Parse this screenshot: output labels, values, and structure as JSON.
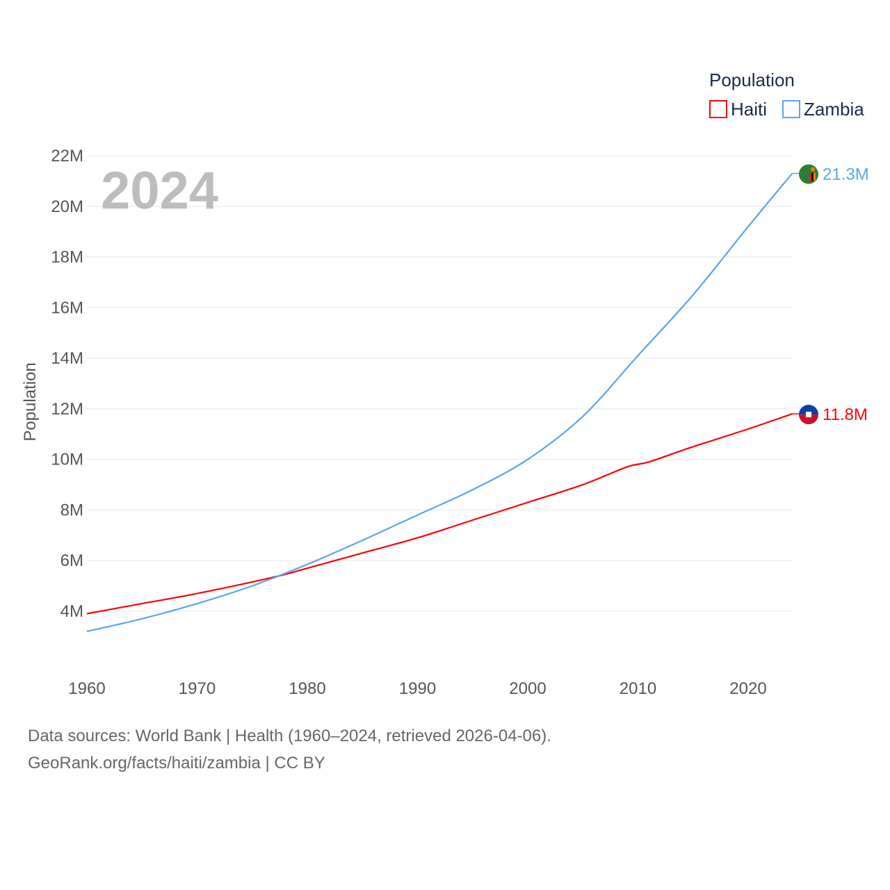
{
  "chart_data": {
    "type": "line",
    "year_label": "2024",
    "ylabel": "Population",
    "xlabel": "",
    "legend_title": "Population",
    "legend_position": "top-right",
    "ylim": [
      0,
      22000000
    ],
    "xlim": [
      1960,
      2024
    ],
    "grid": true,
    "y_ticks": [
      4000000,
      6000000,
      8000000,
      10000000,
      12000000,
      14000000,
      16000000,
      18000000,
      20000000,
      22000000
    ],
    "y_tick_labels": [
      "4M",
      "6M",
      "8M",
      "10M",
      "12M",
      "14M",
      "16M",
      "18M",
      "20M",
      "22M"
    ],
    "x_ticks": [
      1960,
      1970,
      1980,
      1990,
      2000,
      2010,
      2020
    ],
    "x_tick_labels": [
      "1960",
      "1970",
      "1980",
      "1990",
      "2000",
      "2010",
      "2020"
    ],
    "series": [
      {
        "name": "Haiti",
        "color": "#ff0000",
        "end_label": "11.8M",
        "flag": "haiti-flag",
        "x": [
          1960,
          1965,
          1970,
          1977,
          1980,
          1985,
          1990,
          1995,
          2000,
          2005,
          2009,
          2011,
          2015,
          2020,
          2024
        ],
        "values": [
          3.9,
          4.3,
          4.7,
          5.35,
          5.7,
          6.3,
          6.9,
          7.6,
          8.3,
          9.0,
          9.7,
          9.9,
          10.5,
          11.2,
          11.8
        ]
      },
      {
        "name": "Zambia",
        "color": "#5aa5ee",
        "end_label": "21.3M",
        "flag": "zambia-flag",
        "x": [
          1960,
          1965,
          1970,
          1975,
          1980,
          1985,
          1990,
          1995,
          2000,
          2005,
          2010,
          2015,
          2020,
          2024
        ],
        "values": [
          3.2,
          3.7,
          4.3,
          5.0,
          5.85,
          6.8,
          7.8,
          8.8,
          10.0,
          11.7,
          14.1,
          16.5,
          19.2,
          21.3
        ]
      }
    ],
    "value_unit": "millions"
  },
  "footer": {
    "line1": "Data sources: World Bank | Health (1960–2024, retrieved 2026-04-06).",
    "line2": "GeoRank.org/facts/haiti/zambia | CC BY"
  }
}
